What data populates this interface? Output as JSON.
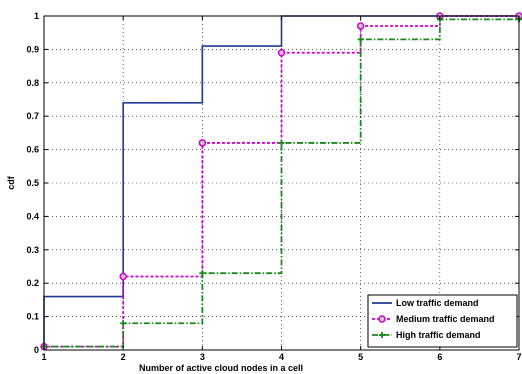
{
  "chart_data": {
    "type": "line",
    "chart_kind": "step cdf",
    "title": "",
    "xlabel": "Number of active cloud nodes in a cell",
    "ylabel": "cdf",
    "xlim": [
      1,
      7
    ],
    "ylim": [
      0,
      1
    ],
    "xticks": [
      "1",
      "2",
      "3",
      "4",
      "5",
      "6",
      "7"
    ],
    "yticks": [
      "0",
      "0.1",
      "0.2",
      "0.3",
      "0.4",
      "0.5",
      "0.6",
      "0.7",
      "0.8",
      "0.9",
      "1"
    ],
    "grid": true,
    "legend_position": "bottom-right",
    "series": [
      {
        "name": "Low traffic demand",
        "color": "#1f3a93",
        "style": "solid",
        "marker": "none",
        "x": [
          1,
          2,
          3,
          4,
          5,
          6,
          7
        ],
        "y": [
          0.16,
          0.74,
          0.91,
          1.0,
          1.0,
          1.0,
          1.0
        ]
      },
      {
        "name": "Medium traffic demand",
        "color": "#d100d1",
        "style": "dashed",
        "marker": "circle",
        "x": [
          1,
          2,
          3,
          4,
          5,
          6,
          7
        ],
        "y": [
          0.01,
          0.22,
          0.62,
          0.89,
          0.97,
          1.0,
          1.0
        ]
      },
      {
        "name": "High traffic demand",
        "color": "#1a8a1a",
        "style": "dashdot",
        "marker": "plus",
        "x": [
          1,
          2,
          3,
          4,
          5,
          6,
          7
        ],
        "y": [
          0.01,
          0.08,
          0.23,
          0.62,
          0.93,
          0.99,
          0.99
        ]
      }
    ]
  }
}
